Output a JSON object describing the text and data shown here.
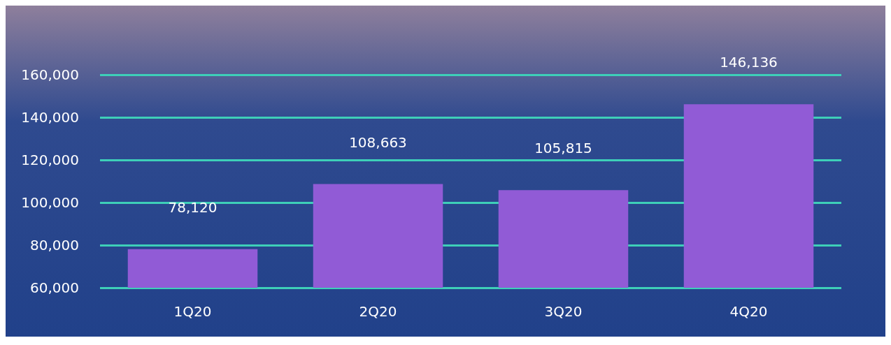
{
  "chart_data": {
    "type": "bar",
    "categories": [
      "1Q20",
      "2Q20",
      "3Q20",
      "4Q20"
    ],
    "values": [
      78120,
      108663,
      105815,
      146136
    ],
    "value_labels": [
      "78,120",
      "108,663",
      "105,815",
      "146,136"
    ],
    "color": "#915bd6",
    "ylim": [
      60000,
      160000
    ],
    "yticks": [
      {
        "value": 60000,
        "label": "60,000"
      },
      {
        "value": 80000,
        "label": "80,000"
      },
      {
        "value": 100000,
        "label": "100,000"
      },
      {
        "value": 120000,
        "label": "120,000"
      },
      {
        "value": 140000,
        "label": "140,000"
      },
      {
        "value": 160000,
        "label": "160,000"
      }
    ],
    "grid": "y"
  }
}
